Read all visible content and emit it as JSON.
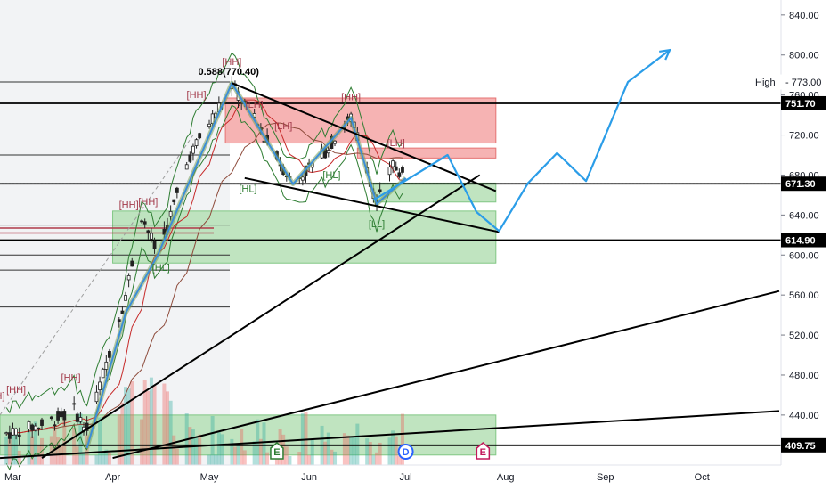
{
  "chart_data": {
    "type": "candlestick",
    "y_axis": {
      "min": 390,
      "max": 855,
      "ticks": [
        840,
        800,
        760,
        720,
        680,
        640,
        600,
        560,
        520,
        480,
        440
      ],
      "tick_labels": [
        "840.00",
        "800.00",
        "760.00",
        "720.00",
        "680.00",
        "640.00",
        "600.00",
        "560.00",
        "520.00",
        "480.00",
        "440.00"
      ]
    },
    "x_axis": {
      "labels": [
        {
          "label": "Mar",
          "x": "2023-03-01"
        },
        {
          "label": "Apr",
          "x": "2023-04-01"
        },
        {
          "label": "May",
          "x": "2023-05-01"
        },
        {
          "label": "Jun",
          "x": "2023-06-01"
        },
        {
          "label": "Jul",
          "x": "2023-07-01"
        },
        {
          "label": "Aug",
          "x": "2023-08-01"
        },
        {
          "label": "Sep",
          "x": "2023-09-01"
        },
        {
          "label": "Oct",
          "x": "2023-10-01"
        }
      ],
      "range": [
        "2023-02-25",
        "2023-10-25"
      ]
    },
    "price_badges": [
      {
        "label": "High",
        "value": "773.00",
        "price": 773,
        "color": "#ffffff"
      },
      {
        "label": "",
        "value": "751.70",
        "price": 751.7,
        "color": "#000000"
      },
      {
        "label": "",
        "value": "671.30",
        "price": 671.3,
        "color": "#000000"
      },
      {
        "label": "",
        "value": "614.90",
        "price": 614.9,
        "color": "#000000"
      },
      {
        "label": "",
        "value": "409.75",
        "price": 409.75,
        "color": "#000000"
      }
    ],
    "fib_label": "0.588(770.40)",
    "swing_labels": [
      {
        "text": "[HH]",
        "x": "2023-05-08",
        "y": 790,
        "color": "#a33a4a"
      },
      {
        "text": "[HH]",
        "x": "2023-04-27",
        "y": 757,
        "color": "#a33a4a"
      },
      {
        "text": "[LH]",
        "x": "2023-05-15",
        "y": 747,
        "color": "#a33a4a"
      },
      {
        "text": "[LH]",
        "x": "2023-05-24",
        "y": 726,
        "color": "#a33a4a"
      },
      {
        "text": "[HL]",
        "x": "2023-05-13",
        "y": 663,
        "color": "#2e7d32"
      },
      {
        "text": "[HH]",
        "x": "2023-06-14",
        "y": 755,
        "color": "#a33a4a"
      },
      {
        "text": "[HL]",
        "x": "2023-06-08",
        "y": 677,
        "color": "#2e7d32"
      },
      {
        "text": "[LH]",
        "x": "2023-06-28",
        "y": 709,
        "color": "#a33a4a"
      },
      {
        "text": "[LL]",
        "x": "2023-06-22",
        "y": 628,
        "color": "#2e7d32"
      },
      {
        "text": "[HH]",
        "x": "2023-04-06",
        "y": 647,
        "color": "#a33a4a"
      },
      {
        "text": "[HH]",
        "x": "2023-04-12",
        "y": 650,
        "color": "#a33a4a"
      },
      {
        "text": "[HL]",
        "x": "2023-04-16",
        "y": 584,
        "color": "#2e7d32"
      },
      {
        "text": "[HH]",
        "x": "2023-03-19",
        "y": 474,
        "color": "#a33a4a"
      },
      {
        "text": "[HH]",
        "x": "2023-03-02",
        "y": 462,
        "color": "#a33a4a"
      },
      {
        "text": "H]",
        "x": "2023-02-25",
        "y": 456,
        "color": "#a33a4a"
      }
    ],
    "zones": [
      {
        "kind": "supply",
        "x_start": "2023-05-06",
        "x_end": "2023-07-29",
        "y_low": 712,
        "y_high": 757,
        "color": "#f4a6a6"
      },
      {
        "kind": "supply",
        "x_start": "2023-06-16",
        "x_end": "2023-07-29",
        "y_low": 697,
        "y_high": 707,
        "color": "#f4a6a6"
      },
      {
        "kind": "demand",
        "x_start": "2023-06-21",
        "x_end": "2023-07-29",
        "y_low": 653,
        "y_high": 672,
        "color": "#b5dfb5"
      },
      {
        "kind": "demand",
        "x_start": "2023-04-01",
        "x_end": "2023-07-29",
        "y_low": 592,
        "y_high": 644,
        "color": "#b5dfb5"
      },
      {
        "kind": "demand",
        "x_start": "2023-02-25",
        "x_end": "2023-07-29",
        "y_low": 400,
        "y_high": 440,
        "color": "#b5dfb5"
      }
    ],
    "horizontal_levels": [
      751.7,
      671.3,
      614.9,
      409.75
    ],
    "trendlines": [
      {
        "color": "#000000",
        "points": [
          [
            "2023-05-08",
            772
          ],
          [
            "2023-07-29",
            664
          ]
        ]
      },
      {
        "color": "#000000",
        "points": [
          [
            "2023-05-12",
            677
          ],
          [
            "2023-07-30",
            623
          ]
        ]
      },
      {
        "color": "#000000",
        "points": [
          [
            "2023-03-10",
            397
          ],
          [
            "2023-07-24",
            680
          ]
        ]
      },
      {
        "color": "#000000",
        "points": [
          [
            "2023-04-01",
            397
          ],
          [
            "2023-10-25",
            564
          ]
        ]
      },
      {
        "color": "#000000",
        "points": [
          [
            "2023-02-25",
            397
          ],
          [
            "2023-10-25",
            444
          ]
        ]
      }
    ],
    "projection_path": [
      [
        "2023-06-21",
        655
      ],
      [
        "2023-07-14",
        700
      ],
      [
        "2023-07-23",
        643
      ],
      [
        "2023-07-30",
        624
      ],
      [
        "2023-08-08",
        672
      ],
      [
        "2023-08-17",
        702
      ],
      [
        "2023-08-26",
        674
      ],
      [
        "2023-09-08",
        773
      ],
      [
        "2023-09-21",
        805
      ]
    ],
    "zigzag_path": [
      [
        "2023-03-24",
        407
      ],
      [
        "2023-04-05",
        542
      ],
      [
        "2023-04-15",
        600
      ],
      [
        "2023-05-08",
        772
      ],
      [
        "2023-05-27",
        671
      ],
      [
        "2023-06-14",
        737
      ],
      [
        "2023-06-22",
        651
      ],
      [
        "2023-07-01",
        677
      ]
    ],
    "event_badges": [
      {
        "label": "E",
        "x": "2023-05-22",
        "color": "#2e7d32"
      },
      {
        "label": "D",
        "x": "2023-07-01",
        "color": "#2962ff"
      },
      {
        "label": "E",
        "x": "2023-07-25",
        "color": "#c2185b"
      }
    ]
  }
}
